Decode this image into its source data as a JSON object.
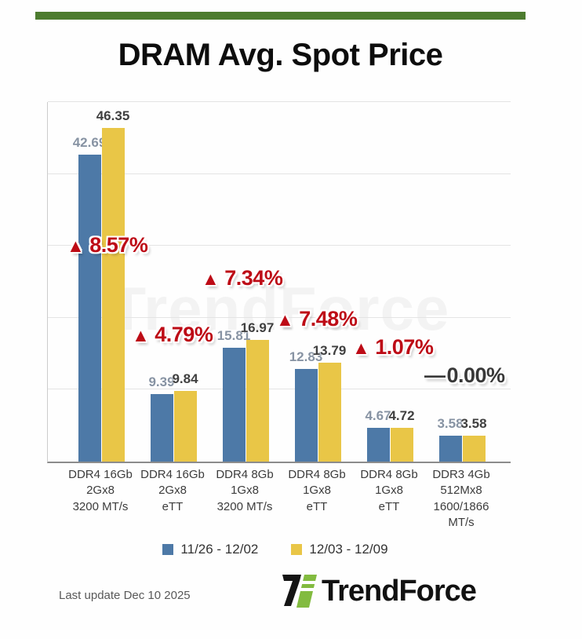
{
  "header": {
    "title": "DRAM Avg. Spot Price"
  },
  "watermark": {
    "text": "TrendForce"
  },
  "chart_data": {
    "type": "bar",
    "title": "DRAM Avg. Spot Price",
    "xlabel": "",
    "ylabel": "",
    "ylim": [
      0,
      50
    ],
    "gridline_values": [
      10,
      20,
      30,
      40,
      50
    ],
    "grid": "on",
    "legend_position": "bottom",
    "categories": [
      [
        "DDR4 16Gb",
        "2Gx8",
        "3200 MT/s"
      ],
      [
        "DDR4 16Gb",
        "2Gx8",
        "eTT"
      ],
      [
        "DDR4 8Gb",
        "1Gx8",
        "3200 MT/s"
      ],
      [
        "DDR4 8Gb",
        "1Gx8",
        "eTT"
      ],
      [
        "DDR4 8Gb",
        "1Gx8",
        "eTT"
      ],
      [
        "DDR3 4Gb",
        "512Mx8",
        "1600/1866",
        "MT/s"
      ]
    ],
    "series": [
      {
        "name": "11/26 - 12/02",
        "color": "#4d79a7",
        "label_color": "#8793a3",
        "values": [
          42.69,
          9.39,
          15.81,
          12.83,
          4.67,
          3.58
        ]
      },
      {
        "name": "12/03 - 12/09",
        "color": "#e9c647",
        "label_color": "#3f3f3f",
        "values": [
          46.35,
          9.84,
          16.97,
          13.79,
          4.72,
          3.58
        ]
      }
    ],
    "annotations": [
      {
        "marker": "▲",
        "label": "8.57%",
        "direction": "up",
        "color": "#bd0b16"
      },
      {
        "marker": "▲",
        "label": "4.79%",
        "direction": "up",
        "color": "#bd0b16"
      },
      {
        "marker": "▲",
        "label": "7.34%",
        "direction": "up",
        "color": "#bd0b16"
      },
      {
        "marker": "▲",
        "label": "7.48%",
        "direction": "up",
        "color": "#bd0b16"
      },
      {
        "marker": "▲",
        "label": "1.07%",
        "direction": "up",
        "color": "#bd0b16"
      },
      {
        "marker": "—",
        "label": "0.00%",
        "direction": "flat",
        "color": "#383838"
      }
    ]
  },
  "colors": {
    "accent_bar_green": "#4d7c2f",
    "series_blue": "#4d79a7",
    "series_yellow": "#e9c647",
    "up_red": "#bd0b16",
    "logo_green": "#82bb3f"
  },
  "footer": {
    "last_update": "Last update Dec 10 2025",
    "brand": "TrendForce"
  }
}
